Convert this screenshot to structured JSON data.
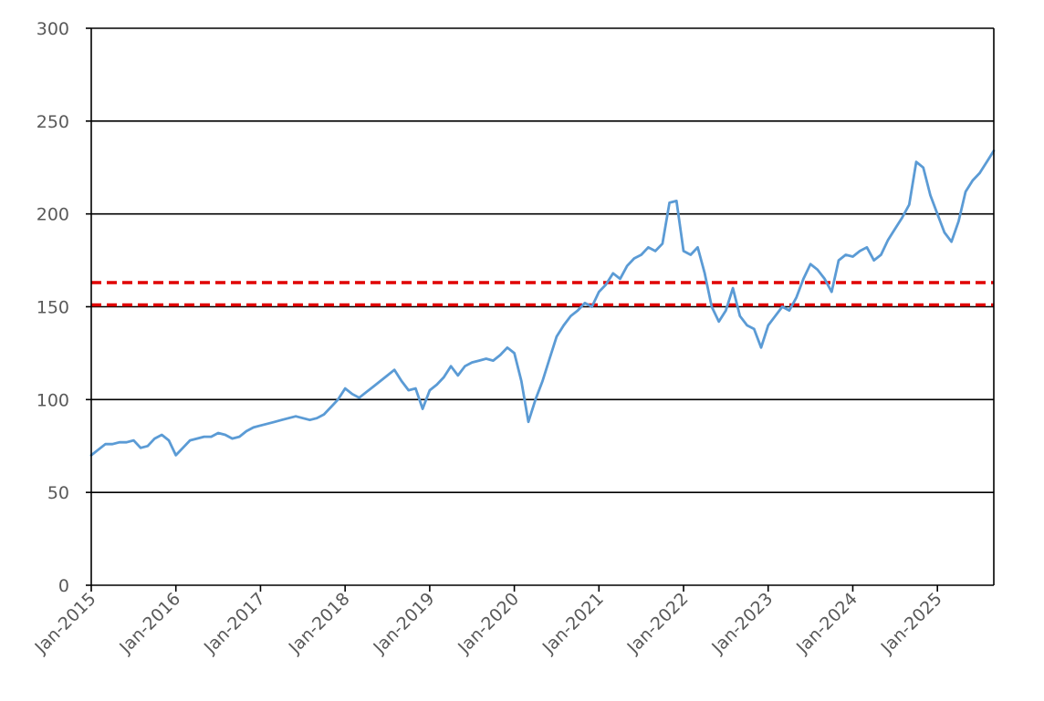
{
  "chart_data": {
    "type": "line",
    "title": "",
    "xlabel": "",
    "ylabel": "",
    "xlim": [
      "2015-01",
      "2025-09"
    ],
    "ylim": [
      0,
      300
    ],
    "y_ticks": [
      0,
      50,
      100,
      150,
      200,
      250,
      300
    ],
    "y_tick_labels": [
      "0",
      "50",
      "100",
      "150",
      "200",
      "250",
      "300"
    ],
    "x_ticks": [
      "2015-01",
      "2016-01",
      "2017-01",
      "2018-01",
      "2019-01",
      "2020-01",
      "2021-01",
      "2022-01",
      "2023-01",
      "2024-01",
      "2025-01"
    ],
    "x_tick_labels": [
      "Jan-2015",
      "Jan-2016",
      "Jan-2017",
      "Jan-2018",
      "Jan-2019",
      "Jan-2020",
      "Jan-2021",
      "Jan-2022",
      "Jan-2023",
      "Jan-2024",
      "Jan-2025"
    ],
    "grid": "horizontal",
    "legend": "none",
    "series": [
      {
        "color": "#5b9bd5",
        "x": [
          "2015-01",
          "2015-02",
          "2015-03",
          "2015-04",
          "2015-05",
          "2015-06",
          "2015-07",
          "2015-08",
          "2015-09",
          "2015-10",
          "2015-11",
          "2015-12",
          "2016-01",
          "2016-02",
          "2016-03",
          "2016-04",
          "2016-05",
          "2016-06",
          "2016-07",
          "2016-08",
          "2016-09",
          "2016-10",
          "2016-11",
          "2016-12",
          "2017-01",
          "2017-02",
          "2017-03",
          "2017-04",
          "2017-05",
          "2017-06",
          "2017-07",
          "2017-08",
          "2017-09",
          "2017-10",
          "2017-11",
          "2017-12",
          "2018-01",
          "2018-02",
          "2018-03",
          "2018-04",
          "2018-05",
          "2018-06",
          "2018-07",
          "2018-08",
          "2018-09",
          "2018-10",
          "2018-11",
          "2018-12",
          "2019-01",
          "2019-02",
          "2019-03",
          "2019-04",
          "2019-05",
          "2019-06",
          "2019-07",
          "2019-08",
          "2019-09",
          "2019-10",
          "2019-11",
          "2019-12",
          "2020-01",
          "2020-02",
          "2020-03",
          "2020-04",
          "2020-05",
          "2020-06",
          "2020-07",
          "2020-08",
          "2020-09",
          "2020-10",
          "2020-11",
          "2020-12",
          "2021-01",
          "2021-02",
          "2021-03",
          "2021-04",
          "2021-05",
          "2021-06",
          "2021-07",
          "2021-08",
          "2021-09",
          "2021-10",
          "2021-11",
          "2021-12",
          "2022-01",
          "2022-02",
          "2022-03",
          "2022-04",
          "2022-05",
          "2022-06",
          "2022-07",
          "2022-08",
          "2022-09",
          "2022-10",
          "2022-11",
          "2022-12",
          "2023-01",
          "2023-02",
          "2023-03",
          "2023-04",
          "2023-05",
          "2023-06",
          "2023-07",
          "2023-08",
          "2023-09",
          "2023-10",
          "2023-11",
          "2023-12",
          "2024-01",
          "2024-02",
          "2024-03",
          "2024-04",
          "2024-05",
          "2024-06",
          "2024-07",
          "2024-08",
          "2024-09",
          "2024-10",
          "2024-11",
          "2024-12",
          "2025-01",
          "2025-02",
          "2025-03",
          "2025-04",
          "2025-05",
          "2025-06",
          "2025-07",
          "2025-08",
          "2025-09"
        ],
        "values": [
          70,
          73,
          76,
          76,
          77,
          77,
          78,
          74,
          75,
          79,
          81,
          78,
          70,
          74,
          78,
          79,
          80,
          80,
          82,
          81,
          79,
          80,
          83,
          85,
          86,
          87,
          88,
          89,
          90,
          91,
          90,
          89,
          90,
          92,
          96,
          100,
          106,
          103,
          101,
          104,
          107,
          110,
          113,
          116,
          110,
          105,
          106,
          95,
          105,
          108,
          112,
          118,
          113,
          118,
          120,
          121,
          122,
          121,
          124,
          128,
          125,
          110,
          88,
          100,
          110,
          122,
          134,
          140,
          145,
          148,
          152,
          150,
          158,
          162,
          168,
          165,
          172,
          176,
          178,
          182,
          180,
          184,
          206,
          207,
          180,
          178,
          182,
          168,
          150,
          142,
          148,
          160,
          145,
          140,
          138,
          128,
          140,
          145,
          150,
          148,
          155,
          165,
          173,
          170,
          165,
          158,
          175,
          178,
          177,
          180,
          182,
          175,
          178,
          186,
          192,
          198,
          205,
          228,
          225,
          210,
          200,
          190,
          185,
          196,
          212,
          218,
          222,
          228,
          234
        ]
      }
    ],
    "reference_lines": [
      {
        "y": 163,
        "color": "#e00000",
        "style": "dashed"
      },
      {
        "y": 151,
        "color": "#e00000",
        "style": "dashed"
      }
    ]
  }
}
